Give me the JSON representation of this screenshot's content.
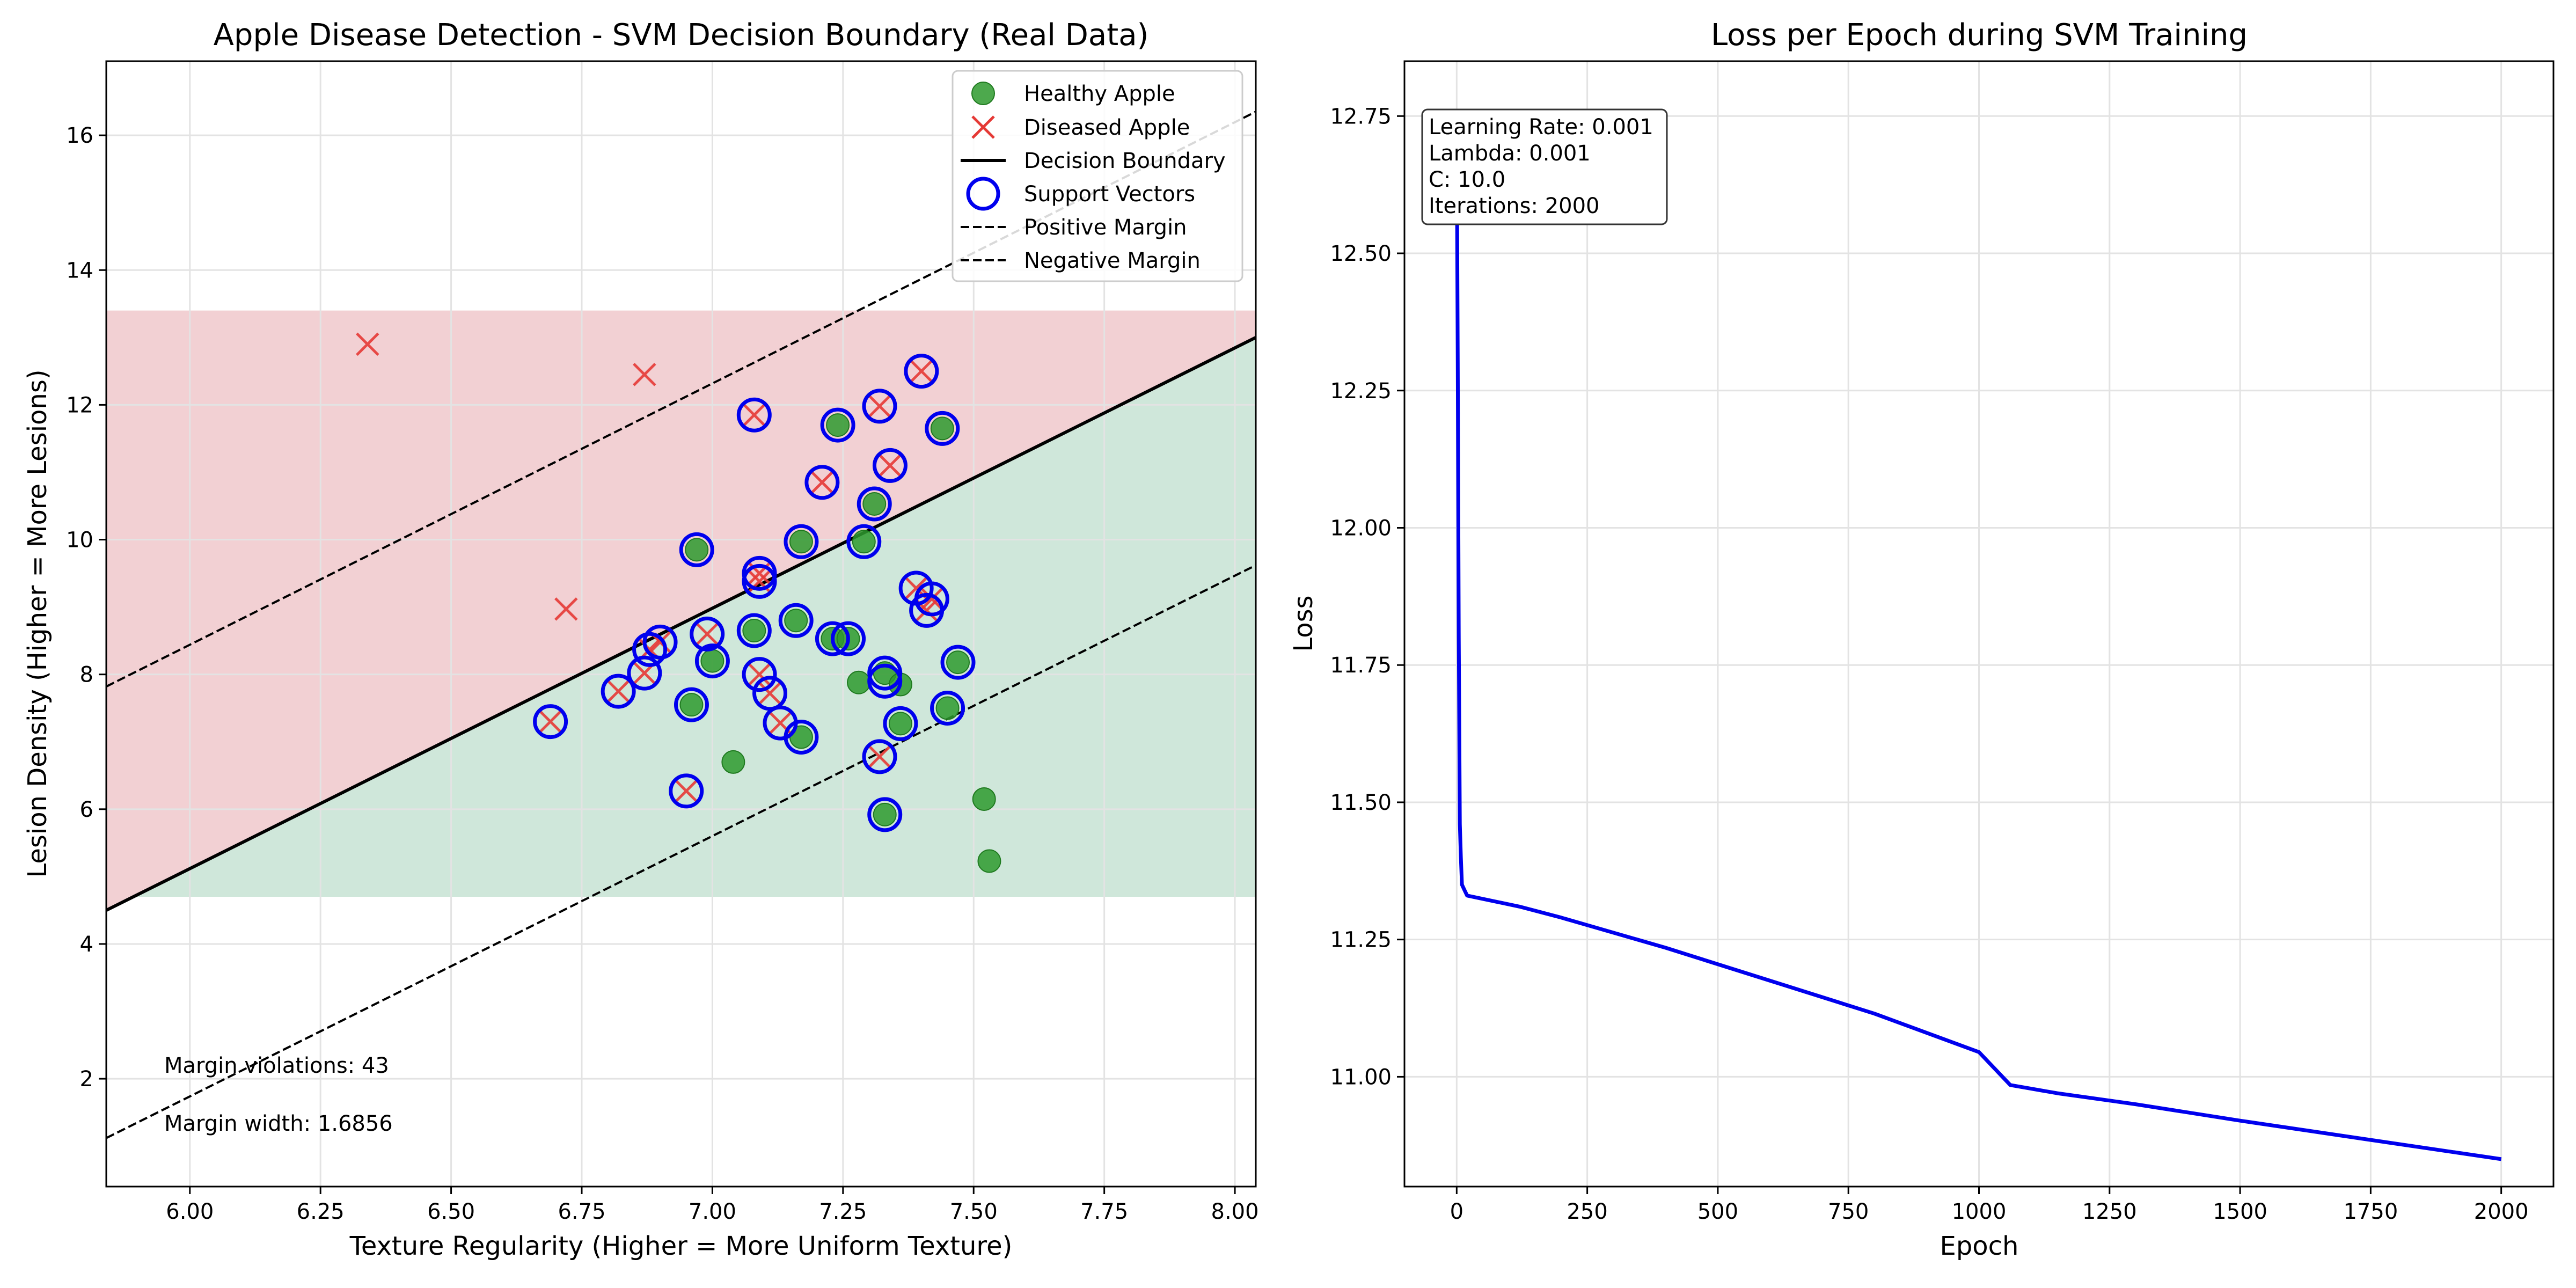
{
  "chart_data": [
    {
      "type": "scatter",
      "title": "Apple Disease Detection - SVM Decision Boundary (Real Data)",
      "xlabel": "Texture Regularity (Higher = More Uniform Texture)",
      "ylabel": "Lesion Density (Higher = More Lesions)",
      "xlim": [
        5.84,
        8.04
      ],
      "ylim": [
        0.4,
        17.1
      ],
      "xticks": [
        6.0,
        6.25,
        6.5,
        6.75,
        7.0,
        7.25,
        7.5,
        7.75,
        8.0
      ],
      "xtick_labels": [
        "6.00",
        "6.25",
        "6.50",
        "6.75",
        "7.00",
        "7.25",
        "7.50",
        "7.75",
        "8.00"
      ],
      "yticks": [
        2,
        4,
        6,
        8,
        10,
        12,
        14,
        16
      ],
      "ytick_labels": [
        "2",
        "4",
        "6",
        "8",
        "10",
        "12",
        "14",
        "16"
      ],
      "grid": true,
      "legend_position": "top-right",
      "colors": {
        "healthy": "#2e9a2e",
        "diseased": "#e53935",
        "support": "#0000ee",
        "boundary": "#000000",
        "region_diseased": "#f2d0d3",
        "region_healthy": "#cfe7da"
      },
      "regions": {
        "x_range": [
          5.84,
          8.04
        ],
        "y_range": [
          4.7,
          13.4
        ],
        "boundary_line": {
          "x": [
            5.84,
            8.04
          ],
          "y": [
            4.5,
            13.0
          ]
        },
        "positive_margin": {
          "x": [
            5.84,
            8.04
          ],
          "y": [
            7.82,
            16.35
          ]
        },
        "negative_margin": {
          "x": [
            5.84,
            8.04
          ],
          "y": [
            1.12,
            9.62
          ]
        }
      },
      "series": [
        {
          "name": "Healthy Apple",
          "marker": "circle",
          "points": [
            [
              6.97,
              9.85
            ],
            [
              7.04,
              6.7
            ],
            [
              7.0,
              8.2
            ],
            [
              6.96,
              7.55
            ],
            [
              7.08,
              8.65
            ],
            [
              7.16,
              8.8
            ],
            [
              7.17,
              9.97
            ],
            [
              7.24,
              11.7
            ],
            [
              7.23,
              8.53
            ],
            [
              7.26,
              8.53
            ],
            [
              7.28,
              7.88
            ],
            [
              7.31,
              10.53
            ],
            [
              7.29,
              9.97
            ],
            [
              7.33,
              8.02
            ],
            [
              7.36,
              7.85
            ],
            [
              7.17,
              7.07
            ],
            [
              7.36,
              7.27
            ],
            [
              7.44,
              11.65
            ],
            [
              7.45,
              7.5
            ],
            [
              7.47,
              8.18
            ],
            [
              7.33,
              5.92
            ],
            [
              7.52,
              6.15
            ],
            [
              7.53,
              5.23
            ]
          ]
        },
        {
          "name": "Diseased Apple",
          "marker": "x",
          "points": [
            [
              6.34,
              12.9
            ],
            [
              6.87,
              12.45
            ],
            [
              6.72,
              8.97
            ],
            [
              6.69,
              7.3
            ],
            [
              6.82,
              7.75
            ],
            [
              6.87,
              8.02
            ],
            [
              6.88,
              8.37
            ],
            [
              6.9,
              8.48
            ],
            [
              6.99,
              8.6
            ],
            [
              6.95,
              6.27
            ],
            [
              7.08,
              11.85
            ],
            [
              7.09,
              9.5
            ],
            [
              7.09,
              9.38
            ],
            [
              7.09,
              8.0
            ],
            [
              7.11,
              7.72
            ],
            [
              7.13,
              7.28
            ],
            [
              7.21,
              10.85
            ],
            [
              7.32,
              11.98
            ],
            [
              7.34,
              11.1
            ],
            [
              7.4,
              12.5
            ],
            [
              7.39,
              9.28
            ],
            [
              7.41,
              8.95
            ],
            [
              7.42,
              9.12
            ],
            [
              7.32,
              6.78
            ]
          ]
        },
        {
          "name": "Support Vectors",
          "marker": "ring",
          "points": [
            [
              6.69,
              7.3
            ],
            [
              6.82,
              7.75
            ],
            [
              6.87,
              8.02
            ],
            [
              6.88,
              8.37
            ],
            [
              6.9,
              8.48
            ],
            [
              6.99,
              8.6
            ],
            [
              6.95,
              6.27
            ],
            [
              7.08,
              11.85
            ],
            [
              7.09,
              9.5
            ],
            [
              7.09,
              9.38
            ],
            [
              7.09,
              8.0
            ],
            [
              7.11,
              7.72
            ],
            [
              7.13,
              7.28
            ],
            [
              7.21,
              10.85
            ],
            [
              7.32,
              11.98
            ],
            [
              7.34,
              11.1
            ],
            [
              7.4,
              12.5
            ],
            [
              7.39,
              9.28
            ],
            [
              7.41,
              8.95
            ],
            [
              7.42,
              9.12
            ],
            [
              7.32,
              6.78
            ],
            [
              6.97,
              9.85
            ],
            [
              7.0,
              8.2
            ],
            [
              6.96,
              7.55
            ],
            [
              7.08,
              8.65
            ],
            [
              7.16,
              8.8
            ],
            [
              7.17,
              9.97
            ],
            [
              7.24,
              11.7
            ],
            [
              7.23,
              8.53
            ],
            [
              7.26,
              8.53
            ],
            [
              7.31,
              10.53
            ],
            [
              7.29,
              9.97
            ],
            [
              7.33,
              8.02
            ],
            [
              7.33,
              7.9
            ],
            [
              7.17,
              7.07
            ],
            [
              7.36,
              7.27
            ],
            [
              7.44,
              11.65
            ],
            [
              7.45,
              7.5
            ],
            [
              7.47,
              8.18
            ],
            [
              7.33,
              5.92
            ]
          ]
        }
      ],
      "legend": [
        "Healthy Apple",
        "Diseased Apple",
        "Decision Boundary",
        "Support Vectors",
        "Positive Margin",
        "Negative Margin"
      ],
      "annotations": [
        "Margin violations: 43",
        "Margin width: 1.6856"
      ]
    },
    {
      "type": "line",
      "title": "Loss per Epoch during SVM Training",
      "xlabel": "Epoch",
      "ylabel": "Loss",
      "xlim": [
        -100,
        2100
      ],
      "ylim": [
        10.8,
        12.85
      ],
      "xticks": [
        0,
        250,
        500,
        750,
        1000,
        1250,
        1500,
        1750,
        2000
      ],
      "xtick_labels": [
        "0",
        "250",
        "500",
        "750",
        "1000",
        "1250",
        "1500",
        "1750",
        "2000"
      ],
      "yticks": [
        11.0,
        11.25,
        11.5,
        11.75,
        12.0,
        12.25,
        12.5,
        12.75
      ],
      "ytick_labels": [
        "11.00",
        "11.25",
        "11.50",
        "11.75",
        "12.00",
        "12.25",
        "12.50",
        "12.75"
      ],
      "grid": true,
      "color": "#0000ee",
      "x": [
        0,
        2,
        4,
        6,
        8,
        10,
        15,
        20,
        120,
        200,
        400,
        600,
        800,
        1000,
        1060,
        1150,
        1300,
        1500,
        1750,
        2000
      ],
      "y": [
        12.75,
        12.3,
        11.8,
        11.46,
        11.4,
        11.35,
        11.34,
        11.33,
        11.31,
        11.29,
        11.235,
        11.175,
        11.115,
        11.045,
        10.985,
        10.97,
        10.95,
        10.92,
        10.885,
        10.85
      ],
      "info_box": [
        "Learning Rate: 0.001",
        "Lambda: 0.001",
        "C: 10.0",
        "Iterations: 2000"
      ]
    }
  ]
}
